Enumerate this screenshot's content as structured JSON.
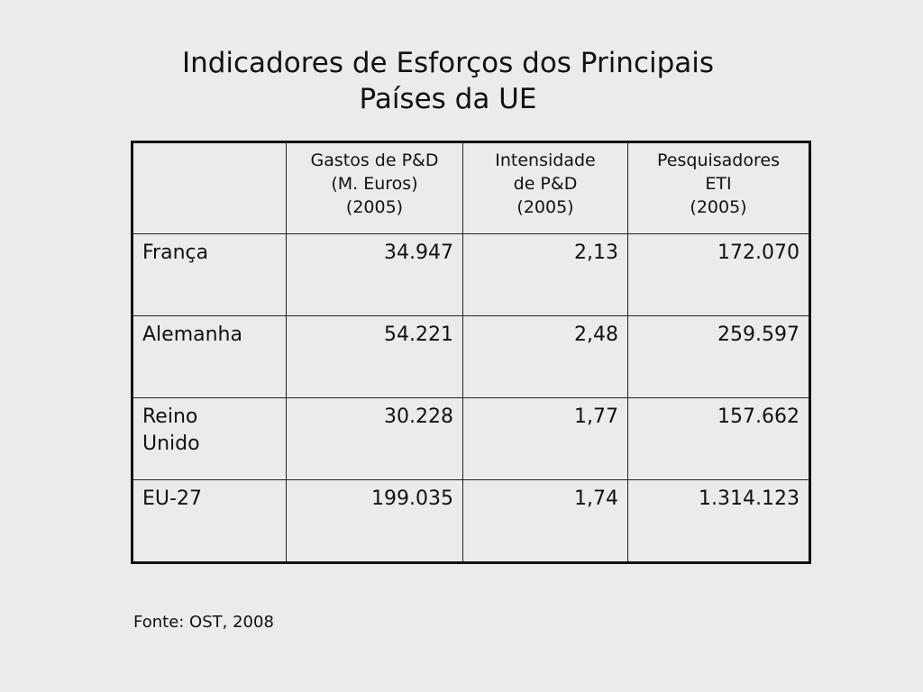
{
  "title": [
    "Indicadores de Esforços dos Principais",
    "Países da UE"
  ],
  "table": {
    "header": [
      [],
      [
        "Gastos de P&D",
        "(M. Euros)",
        "(2005)"
      ],
      [
        "Intensidade",
        "de P&D",
        "(2005)"
      ],
      [
        "Pesquisadores",
        "ETI",
        "(2005)"
      ]
    ],
    "rows": [
      [
        "França",
        "34.947",
        "2,13",
        "172.070"
      ],
      [
        "Alemanha",
        "54.221",
        "2,48",
        "259.597"
      ],
      [
        [
          "Reino",
          "Unido"
        ],
        "30.228",
        "1,77",
        "157.662"
      ],
      [
        "EU-27",
        "199.035",
        "1,74",
        "1.314.123"
      ]
    ]
  },
  "source": "Fonte: OST, 2008"
}
